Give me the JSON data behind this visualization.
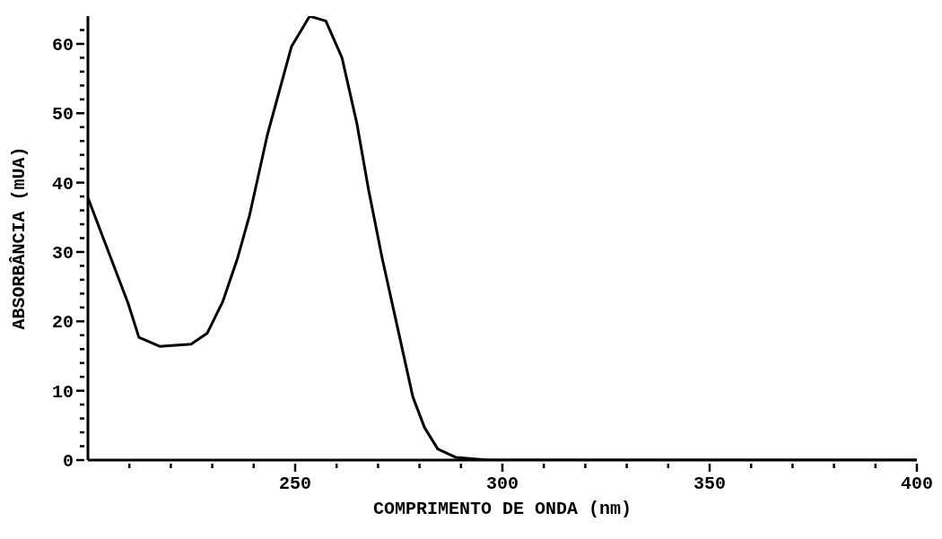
{
  "chart_data": {
    "type": "line",
    "xlabel": "COMPRIMENTO DE ONDA (nm)",
    "ylabel": "ABSORBÂNCIA (mUA)",
    "x": [
      200,
      209.7,
      212.3,
      217.3,
      224.9,
      228.8,
      232.5,
      236.1,
      239,
      243.3,
      249.1,
      253.5,
      257.4,
      261.3,
      264.9,
      267.7,
      271,
      274,
      278.4,
      281.2,
      284.4,
      288.7,
      296.5,
      320,
      350,
      380,
      400
    ],
    "series": [
      {
        "color": "#000000",
        "values": [
          37.8,
          22.6,
          17.7,
          16.4,
          16.7,
          18.3,
          22.8,
          29.1,
          35.3,
          46.9,
          59.6,
          64,
          63.3,
          58,
          48.5,
          39,
          29.1,
          21,
          9.1,
          4.7,
          1.6,
          0.4,
          0,
          0,
          0,
          0,
          0
        ]
      }
    ],
    "xlim": [
      200,
      400
    ],
    "xticks": [
      {
        "value": 210,
        "label": null
      },
      {
        "value": 220,
        "label": null
      },
      {
        "value": 230,
        "label": null
      },
      {
        "value": 240,
        "label": null
      },
      250,
      {
        "value": 260,
        "label": null
      },
      {
        "value": 270,
        "label": null
      },
      {
        "value": 280,
        "label": null
      },
      {
        "value": 290,
        "label": null
      },
      300,
      {
        "value": 310,
        "label": null
      },
      {
        "value": 320,
        "label": null
      },
      {
        "value": 330,
        "label": null
      },
      {
        "value": 340,
        "label": null
      },
      350,
      {
        "value": 360,
        "label": null
      },
      {
        "value": 370,
        "label": null
      },
      {
        "value": 380,
        "label": null
      },
      {
        "value": 390,
        "label": null
      },
      400
    ],
    "ylim": [
      0,
      64
    ],
    "yticks": [
      0,
      {
        "value": 2,
        "label": null
      },
      {
        "value": 4,
        "label": null
      },
      {
        "value": 6,
        "label": null
      },
      {
        "value": 8,
        "label": null
      },
      10,
      {
        "value": 12,
        "label": null
      },
      {
        "value": 14,
        "label": null
      },
      {
        "value": 16,
        "label": null
      },
      {
        "value": 18,
        "label": null
      },
      20,
      {
        "value": 22,
        "label": null
      },
      {
        "value": 24,
        "label": null
      },
      {
        "value": 26,
        "label": null
      },
      {
        "value": 28,
        "label": null
      },
      30,
      {
        "value": 32,
        "label": null
      },
      {
        "value": 34,
        "label": null
      },
      {
        "value": 36,
        "label": null
      },
      {
        "value": 38,
        "label": null
      },
      40,
      {
        "value": 42,
        "label": null
      },
      {
        "value": 44,
        "label": null
      },
      {
        "value": 46,
        "label": null
      },
      {
        "value": 48,
        "label": null
      },
      50,
      {
        "value": 52,
        "label": null
      },
      {
        "value": 54,
        "label": null
      },
      {
        "value": 56,
        "label": null
      },
      {
        "value": 58,
        "label": null
      },
      60,
      {
        "value": 62,
        "label": null
      }
    ],
    "grid": false,
    "legend": false,
    "marker": "none",
    "line_style": "solid"
  }
}
